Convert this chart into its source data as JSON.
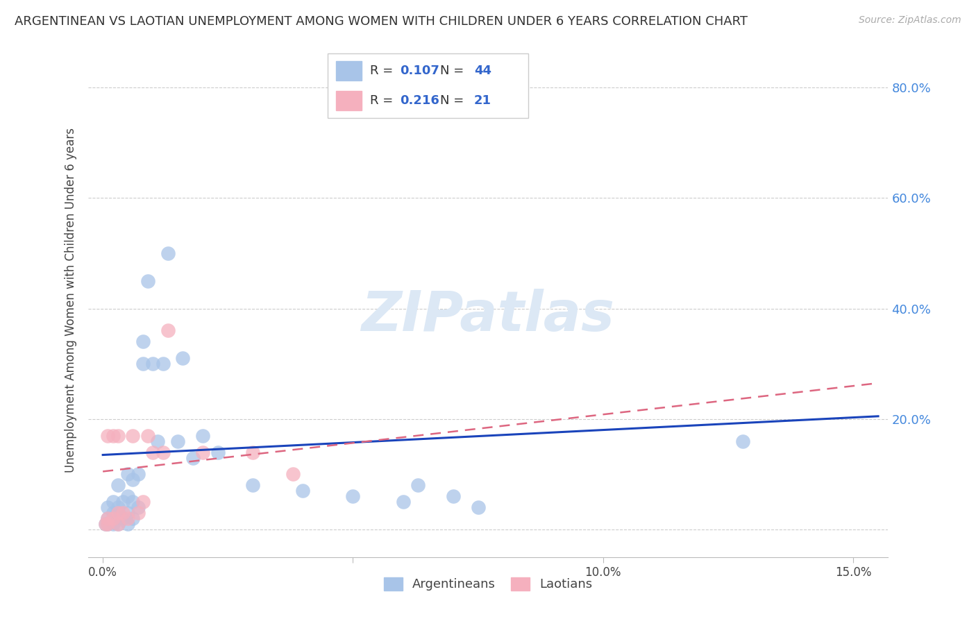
{
  "title": "ARGENTINEAN VS LAOTIAN UNEMPLOYMENT AMONG WOMEN WITH CHILDREN UNDER 6 YEARS CORRELATION CHART",
  "source": "Source: ZipAtlas.com",
  "ylabel": "Unemployment Among Women with Children Under 6 years",
  "xlabel_ticks": [
    0.0,
    0.05,
    0.1,
    0.15
  ],
  "xlabel_labels": [
    "0.0%",
    "",
    "10.0%",
    "15.0%"
  ],
  "ylabel_ticks": [
    0.0,
    0.2,
    0.4,
    0.6,
    0.8
  ],
  "ylabel_right_labels": [
    "",
    "20.0%",
    "40.0%",
    "60.0%",
    "80.0%"
  ],
  "xlim": [
    -0.003,
    0.157
  ],
  "ylim": [
    -0.05,
    0.88
  ],
  "legend_blue_R": "0.107",
  "legend_blue_N": "44",
  "legend_pink_R": "0.216",
  "legend_pink_N": "21",
  "label_argentineans": "Argentineans",
  "label_laotians": "Laotians",
  "blue_color": "#a8c4e8",
  "pink_color": "#f5b0be",
  "trend_blue_color": "#1a44bb",
  "trend_pink_color": "#dd6680",
  "watermark_color": "#dce8f5",
  "argentineans_x": [
    0.0005,
    0.001,
    0.001,
    0.001,
    0.002,
    0.002,
    0.002,
    0.002,
    0.003,
    0.003,
    0.003,
    0.003,
    0.003,
    0.004,
    0.004,
    0.005,
    0.005,
    0.005,
    0.005,
    0.006,
    0.006,
    0.006,
    0.007,
    0.007,
    0.008,
    0.008,
    0.009,
    0.01,
    0.011,
    0.012,
    0.013,
    0.015,
    0.016,
    0.018,
    0.02,
    0.023,
    0.03,
    0.04,
    0.05,
    0.06,
    0.063,
    0.07,
    0.075,
    0.128
  ],
  "argentineans_y": [
    0.01,
    0.01,
    0.02,
    0.04,
    0.01,
    0.02,
    0.03,
    0.05,
    0.01,
    0.02,
    0.03,
    0.04,
    0.08,
    0.02,
    0.05,
    0.01,
    0.03,
    0.06,
    0.1,
    0.02,
    0.05,
    0.09,
    0.04,
    0.1,
    0.3,
    0.34,
    0.45,
    0.3,
    0.16,
    0.3,
    0.5,
    0.16,
    0.31,
    0.13,
    0.17,
    0.14,
    0.08,
    0.07,
    0.06,
    0.05,
    0.08,
    0.06,
    0.04,
    0.16
  ],
  "laotians_x": [
    0.0005,
    0.001,
    0.001,
    0.001,
    0.002,
    0.002,
    0.003,
    0.003,
    0.003,
    0.004,
    0.005,
    0.006,
    0.007,
    0.008,
    0.009,
    0.01,
    0.012,
    0.013,
    0.02,
    0.03,
    0.038
  ],
  "laotians_y": [
    0.01,
    0.01,
    0.02,
    0.17,
    0.02,
    0.17,
    0.01,
    0.03,
    0.17,
    0.03,
    0.02,
    0.17,
    0.03,
    0.05,
    0.17,
    0.14,
    0.14,
    0.36,
    0.14,
    0.14,
    0.1
  ],
  "trend_blue_x0": 0.0,
  "trend_blue_y0": 0.135,
  "trend_blue_x1": 0.155,
  "trend_blue_y1": 0.205,
  "trend_pink_x0": 0.0,
  "trend_pink_y0": 0.105,
  "trend_pink_x1": 0.155,
  "trend_pink_y1": 0.265
}
